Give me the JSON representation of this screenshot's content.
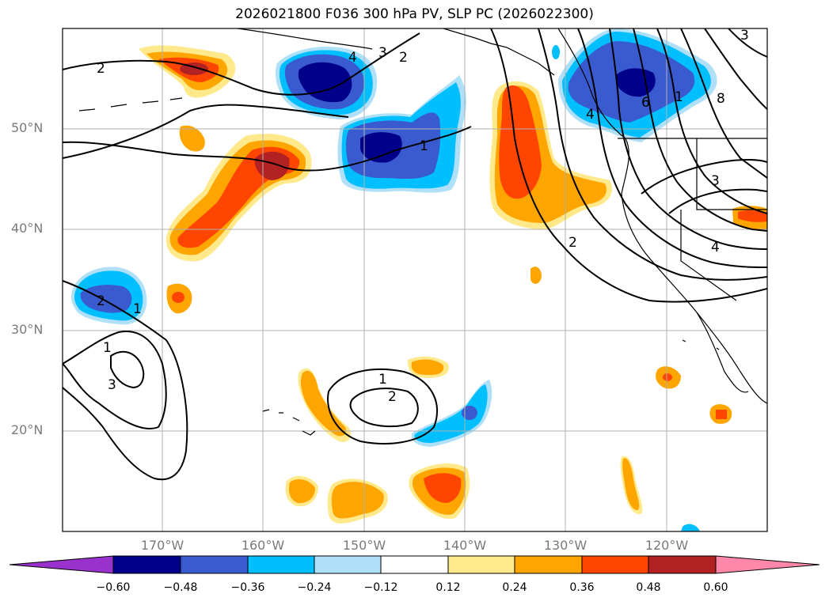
{
  "title": "2026021800 F036 300 hPa PV, SLP PC (2026022300)",
  "axes": {
    "lat_labels": [
      "50°N",
      "40°N",
      "30°N",
      "20°N"
    ],
    "lon_labels": [
      "170°W",
      "160°W",
      "150°W",
      "140°W",
      "130°W",
      "120°W"
    ]
  },
  "colorbar": {
    "ticks": [
      "−0.60",
      "−0.48",
      "−0.36",
      "−0.24",
      "−0.12",
      "0.12",
      "0.24",
      "0.36",
      "0.48",
      "0.60"
    ],
    "colors": [
      "#9932cc",
      "#00008b",
      "#3a5bd0",
      "#00bfff",
      "#b0e0f8",
      "#ffffff",
      "#ffe98a",
      "#ffa500",
      "#ff4500",
      "#b22222",
      "#ff88aa"
    ]
  },
  "contour_labels": [
    "2",
    "1",
    "4",
    "3",
    "2",
    "1",
    "6",
    "4",
    "8",
    "3",
    "3",
    "4",
    "2",
    "1",
    "2",
    "1",
    "3",
    "2",
    "1",
    "2",
    "3"
  ],
  "palette": {
    "pv_neg_strong": "#00008b",
    "pv_neg_mid": "#3a5bd0",
    "pv_neg_weak": "#00bfff",
    "pv_neg_faint": "#b0e0f8",
    "pv_pos_faint": "#ffe98a",
    "pv_pos_weak": "#ffa500",
    "pv_pos_mid": "#ff4500",
    "pv_pos_strong": "#b22222"
  }
}
